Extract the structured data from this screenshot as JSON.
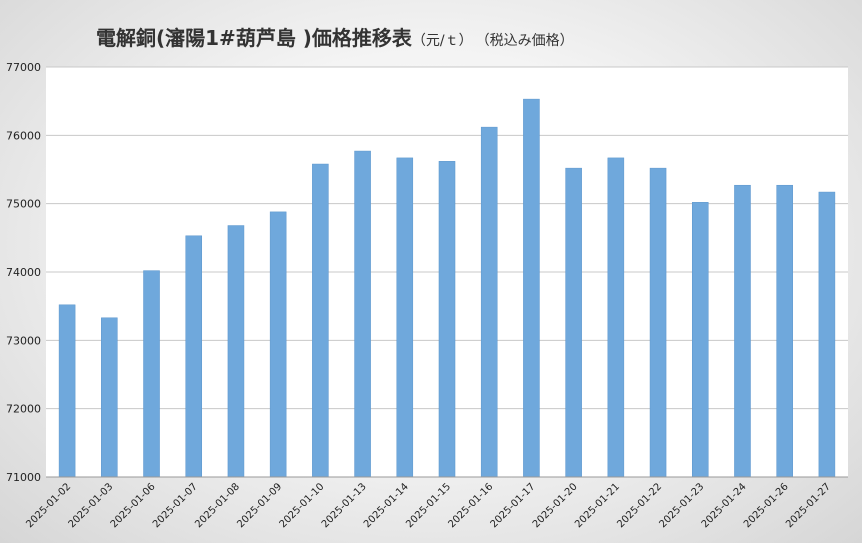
{
  "chart_data": {
    "type": "bar",
    "title": "電解銅(瀋陽1#葫芦島 )価格推移表",
    "unit": "（元/ｔ）",
    "note": "（税込み価格）",
    "xlabel": "",
    "ylabel": "",
    "ylim": [
      71000,
      77000
    ],
    "yticks": [
      "71000",
      "72000",
      "73000",
      "74000",
      "75000",
      "76000",
      "77000"
    ],
    "grid": true,
    "bar_color": "#6fa8dc",
    "categories": [
      "2025-01-02",
      "2025-01-03",
      "2025-01-06",
      "2025-01-07",
      "2025-01-08",
      "2025-01-09",
      "2025-01-10",
      "2025-01-13",
      "2025-01-14",
      "2025-01-15",
      "2025-01-16",
      "2025-01-17",
      "2025-01-20",
      "2025-01-21",
      "2025-01-22",
      "2025-01-23",
      "2025-01-24",
      "2025-01-26",
      "2025-01-27"
    ],
    "values": [
      73520,
      73330,
      74020,
      74530,
      74680,
      74880,
      75580,
      75770,
      75670,
      75620,
      76120,
      76530,
      75520,
      75670,
      75520,
      75020,
      75270,
      75270,
      75170
    ]
  }
}
